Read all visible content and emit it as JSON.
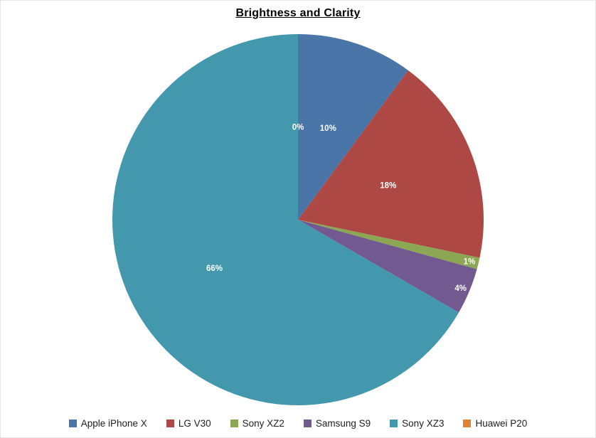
{
  "chart_data": {
    "type": "pie",
    "title": "Brightness and Clarity",
    "legend_position": "bottom",
    "direction": "clockwise",
    "start_angle_deg": 0,
    "slice_label_color": "#FFFFFF",
    "background_color": "#FFFFFF",
    "series": [
      {
        "label": "Apple iPhone X",
        "percent": 10,
        "percent_label": "10%",
        "color": "#4A75A9"
      },
      {
        "label": "LG V30",
        "percent": 18,
        "percent_label": "18%",
        "color": "#AE4845"
      },
      {
        "label": "Sony XZ2",
        "percent": 1,
        "percent_label": "1%",
        "color": "#8BA753"
      },
      {
        "label": "Samsung S9",
        "percent": 4,
        "percent_label": "4%",
        "color": "#725A90"
      },
      {
        "label": "Sony XZ3",
        "percent": 66,
        "percent_label": "66%",
        "color": "#4398AE"
      },
      {
        "label": "Huawei P20",
        "percent": 0,
        "percent_label": "0%",
        "color": "#DF8234"
      }
    ]
  }
}
